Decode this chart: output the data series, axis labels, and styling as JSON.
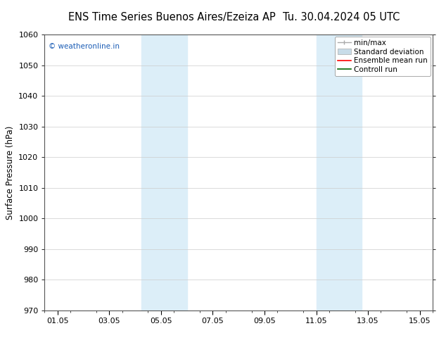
{
  "title_left": "ENS Time Series Buenos Aires/Ezeiza AP",
  "title_right": "Tu. 30.04.2024 05 UTC",
  "ylabel": "Surface Pressure (hPa)",
  "ylim": [
    970,
    1060
  ],
  "yticks": [
    970,
    980,
    990,
    1000,
    1010,
    1020,
    1030,
    1040,
    1050,
    1060
  ],
  "xlim": [
    0.0,
    15.0
  ],
  "xtick_labels": [
    "01.05",
    "03.05",
    "05.05",
    "07.05",
    "09.05",
    "11.05",
    "13.05",
    "15.05"
  ],
  "xtick_positions": [
    0.5,
    2.5,
    4.5,
    6.5,
    8.5,
    10.5,
    12.5,
    14.5
  ],
  "shaded_bands": [
    {
      "x_start": 3.75,
      "x_end": 5.5,
      "color": "#dceef8"
    },
    {
      "x_start": 10.5,
      "x_end": 12.25,
      "color": "#dceef8"
    }
  ],
  "watermark_text": "© weatheronline.in",
  "watermark_color": "#1a5cb5",
  "background_color": "#ffffff",
  "legend_labels": [
    "min/max",
    "Standard deviation",
    "Ensemble mean run",
    "Controll run"
  ],
  "legend_colors": [
    "#aaaaaa",
    "#c8dce8",
    "#ff0000",
    "#006600"
  ],
  "grid_color": "#cccccc",
  "spine_color": "#555555",
  "title_fontsize": 10.5,
  "ylabel_fontsize": 8.5,
  "tick_fontsize": 8,
  "legend_fontsize": 7.5,
  "watermark_fontsize": 7.5
}
